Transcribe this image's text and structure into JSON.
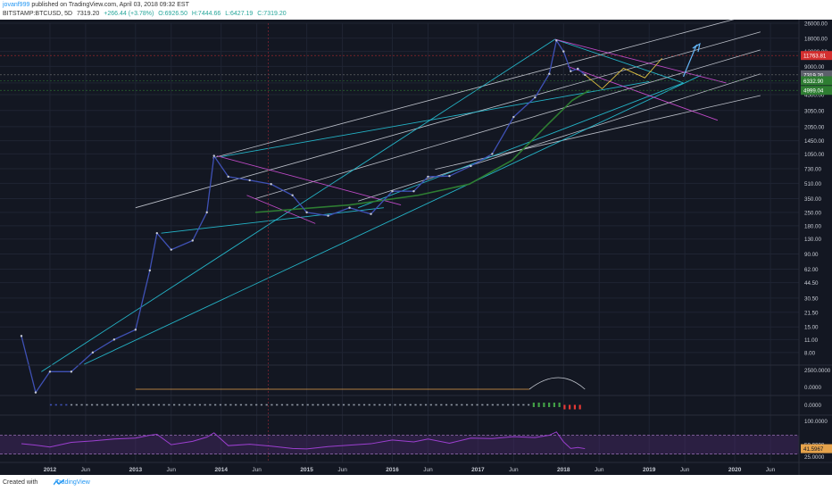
{
  "header": {
    "author": "jovanf999",
    "published": "published on TradingView.com, April 03, 2018 09:32 EST",
    "symbol": "BITSTAMP:BTCUSD, 5D",
    "last": "7319.20",
    "change": "+266.44 (+3.78%)",
    "open": "O:6926.50",
    "high": "H:7444.66",
    "low": "L:6427.19",
    "close": "C:7319.20"
  },
  "footer": {
    "created_with": "Created with",
    "brand": "TradingView"
  },
  "colors": {
    "background": "#131722",
    "grid": "#1f2433",
    "price_line": "#3f51b5",
    "channel_white": "#cfd3dc",
    "channel_cyan": "#26c6da",
    "channel_magenta": "#d24fd8",
    "ma_green": "#2e7d32",
    "rsi": "#9c3fd0",
    "label_red": "#d32f2f",
    "label_green": "#2e7d32"
  },
  "chart_data": {
    "type": "line",
    "scale": "log",
    "title": "",
    "xlabel": "",
    "ylabel": "",
    "x_ticks": [
      "2012",
      "Jun",
      "2013",
      "Jun",
      "2014",
      "Jun",
      "2015",
      "Jun",
      "2016",
      "Jun",
      "2017",
      "Jun",
      "2018",
      "Jun",
      "2019",
      "Jun",
      "2020",
      "Jun"
    ],
    "y_ticks": [
      "26000.00",
      "18000.00",
      "13000.00",
      "9000.00",
      "6000.00",
      "4500.00",
      "3050.00",
      "2050.00",
      "1450.00",
      "1050.00",
      "730.00",
      "510.00",
      "350.00",
      "250.00",
      "180.00",
      "130.00",
      "90.00",
      "62.00",
      "44.50",
      "30.50",
      "21.50",
      "15.00",
      "11.00",
      "8.00"
    ],
    "price_labels": [
      {
        "text": "11763.81",
        "color": "red"
      },
      {
        "text": "7319.20",
        "color": "gray"
      },
      {
        "text": "6332.90",
        "color": "green"
      },
      {
        "text": "4999.04",
        "color": "green"
      }
    ],
    "ylim": [
      6,
      26000
    ],
    "x": [
      "2011-09",
      "2011-11",
      "2012-01",
      "2012-04",
      "2012-07",
      "2012-10",
      "2013-01",
      "2013-03",
      "2013-04",
      "2013-06",
      "2013-09",
      "2013-11",
      "2013-12",
      "2014-02",
      "2014-05",
      "2014-08",
      "2014-11",
      "2015-01",
      "2015-04",
      "2015-07",
      "2015-10",
      "2016-01",
      "2016-04",
      "2016-06",
      "2016-09",
      "2016-12",
      "2017-03",
      "2017-06",
      "2017-09",
      "2017-11",
      "2017-12",
      "2018-01",
      "2018-02",
      "2018-03",
      "2018-04"
    ],
    "series": [
      {
        "name": "",
        "values": [
          12,
          3,
          5,
          5,
          8,
          11,
          14,
          60,
          150,
          100,
          125,
          250,
          1000,
          600,
          550,
          500,
          380,
          250,
          230,
          280,
          240,
          420,
          420,
          600,
          610,
          780,
          1050,
          2600,
          4200,
          7500,
          17000,
          13000,
          8000,
          8500,
          7319
        ]
      }
    ],
    "volume_panel": {
      "ticks": [
        "2500.0000",
        "0.0000"
      ]
    },
    "histogram_panel": {
      "ticks": [
        "0.0000"
      ]
    },
    "rsi_panel": {
      "ticks": [
        "100.0000",
        "50.0000",
        "25.0000"
      ],
      "last": "41.5967",
      "values": [
        52,
        49,
        45,
        55,
        58,
        62,
        64,
        70,
        72,
        50,
        57,
        66,
        75,
        48,
        51,
        47,
        42,
        41,
        46,
        49,
        52,
        60,
        56,
        62,
        53,
        64,
        63,
        67,
        65,
        70,
        77,
        56,
        42,
        44,
        41.6
      ]
    }
  }
}
